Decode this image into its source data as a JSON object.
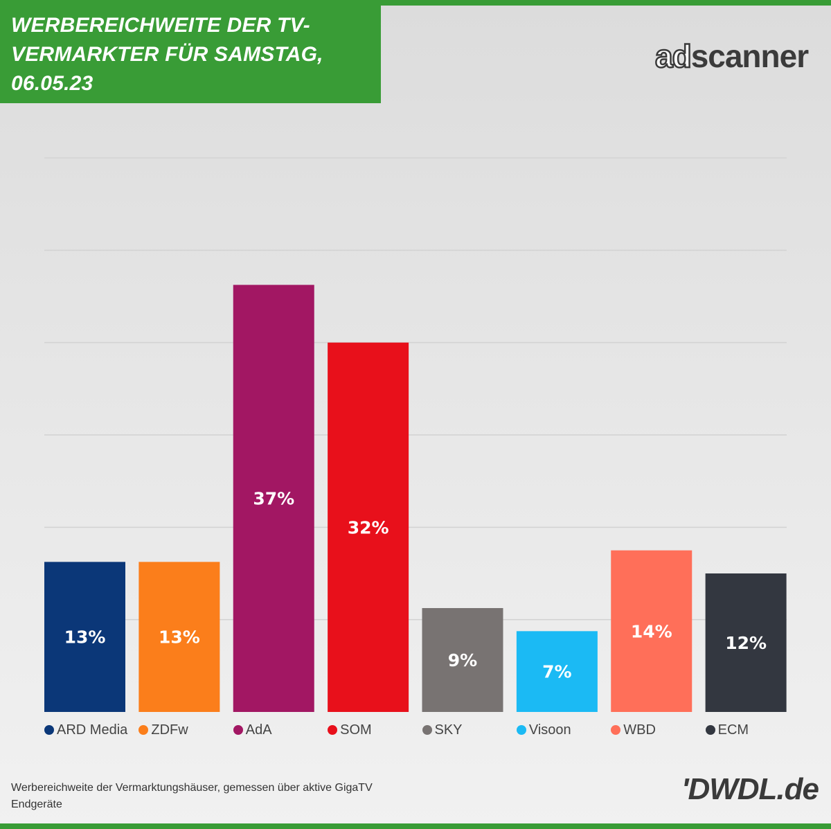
{
  "header": {
    "title": "WERBEREICHWEITE DER TV-\nVERMARKTER FÜR SAMSTAG,\n06.05.23",
    "logo_ad": "ad",
    "logo_scanner": "scanner"
  },
  "chart_data": {
    "type": "bar",
    "categories": [
      "ARD Media",
      "ZDFw",
      "AdA",
      "SOM",
      "SKY",
      "Visoon",
      "WBD",
      "ECM"
    ],
    "values": [
      13,
      13,
      37,
      32,
      9,
      7,
      14,
      12
    ],
    "value_labels": [
      "13%",
      "13%",
      "37%",
      "32%",
      "9%",
      "7%",
      "14%",
      "12%"
    ],
    "colors": [
      "#0b3778",
      "#fb7e1b",
      "#a21763",
      "#e8101b",
      "#787372",
      "#1bbaf4",
      "#ff6f59",
      "#333740"
    ],
    "ylim": [
      0,
      48
    ],
    "grid": true,
    "legend_position": "bottom"
  },
  "footer": {
    "note": "Werbereichweite der Vermarktungshäuser, gemessen über aktive GigaTV Endgeräte",
    "logo": "'DWDL.de"
  }
}
